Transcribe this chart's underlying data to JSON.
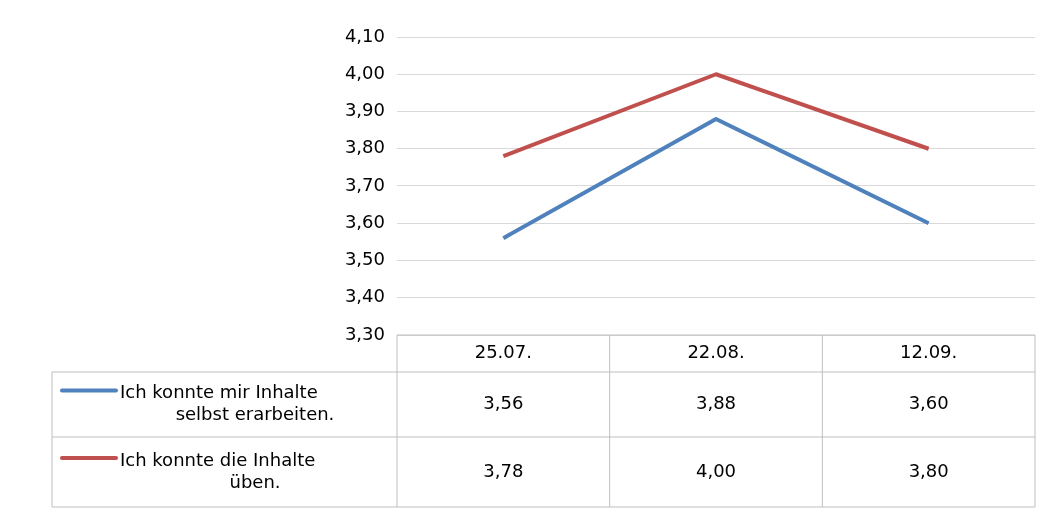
{
  "chart_data": {
    "type": "line",
    "categories": [
      "25.07.",
      "22.08.",
      "12.09."
    ],
    "series": [
      {
        "name": "Ich konnte mir Inhalte selbst erarbeiten.",
        "color": "#4f81bd",
        "values": [
          3.56,
          3.88,
          3.6
        ],
        "value_labels": [
          "3,56",
          "3,88",
          "3,60"
        ]
      },
      {
        "name": "Ich konnte die Inhalte üben.",
        "color": "#c0504d",
        "values": [
          3.78,
          4.0,
          3.8
        ],
        "value_labels": [
          "3,78",
          "4,00",
          "3,80"
        ]
      }
    ],
    "ylim": [
      3.3,
      4.1
    ],
    "yticks": [
      {
        "value": 3.3,
        "label": "3,30"
      },
      {
        "value": 3.4,
        "label": "3,40"
      },
      {
        "value": 3.5,
        "label": "3,50"
      },
      {
        "value": 3.6,
        "label": "3,60"
      },
      {
        "value": 3.7,
        "label": "3,70"
      },
      {
        "value": 3.8,
        "label": "3,80"
      },
      {
        "value": 3.9,
        "label": "3,90"
      },
      {
        "value": 4.0,
        "label": "4,00"
      },
      {
        "value": 4.1,
        "label": "4,10"
      }
    ],
    "grid": "y",
    "legend": "bottom",
    "marker": "none",
    "line_style": "solid"
  }
}
